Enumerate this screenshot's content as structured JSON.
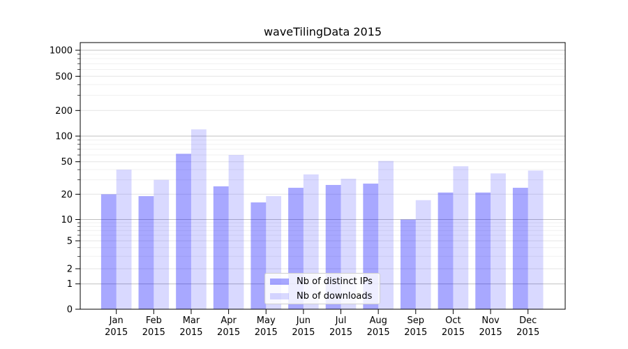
{
  "chart_data": {
    "type": "bar",
    "title": "waveTilingData 2015",
    "categories": [
      "Jan",
      "Feb",
      "Mar",
      "Apr",
      "May",
      "Jun",
      "Jul",
      "Aug",
      "Sep",
      "Oct",
      "Nov",
      "Dec"
    ],
    "category_year_line": "2015",
    "series": [
      {
        "name": "Nb of distinct IPs",
        "color_hex": "#aaaaf7",
        "fill": "rgba(0,0,255,0.34)",
        "values": [
          20,
          19,
          62,
          25,
          16,
          24,
          26,
          27,
          10,
          21,
          21,
          24
        ]
      },
      {
        "name": "Nb of downloads",
        "color_hex": "#d9d9fb",
        "fill": "rgba(0,0,255,0.15)",
        "values": [
          40,
          30,
          120,
          60,
          19,
          35,
          31,
          51,
          17,
          44,
          36,
          39
        ]
      }
    ],
    "y_axis": {
      "scale": "symlog",
      "ticks": [
        0,
        1,
        2,
        5,
        10,
        20,
        50,
        100,
        200,
        500,
        1000
      ],
      "top_value": 1000
    },
    "grid": "horizontal",
    "legend": {
      "position": "lower center",
      "labels": [
        "Nb of distinct IPs",
        "Nb of downloads"
      ]
    }
  }
}
